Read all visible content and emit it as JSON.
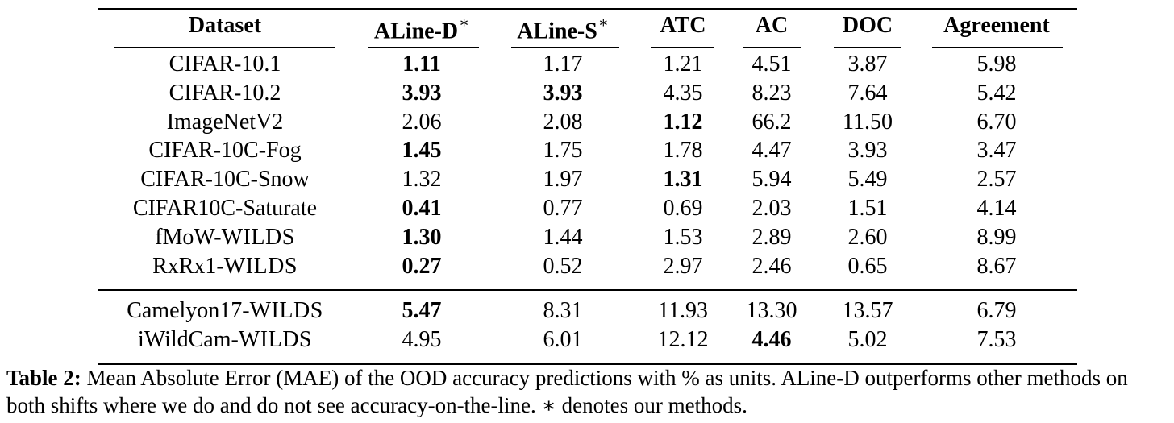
{
  "table": {
    "columns": [
      {
        "label": "Dataset",
        "star": ""
      },
      {
        "label": "ALine-D",
        "star": "∗"
      },
      {
        "label": "ALine-S",
        "star": "∗"
      },
      {
        "label": "ATC",
        "star": ""
      },
      {
        "label": "AC",
        "star": ""
      },
      {
        "label": "DOC",
        "star": ""
      },
      {
        "label": "Agreement",
        "star": ""
      }
    ],
    "group1": [
      {
        "dataset": "CIFAR-10.1",
        "suffix": "",
        "values": [
          "1.11",
          "1.17",
          "1.21",
          "4.51",
          "3.87",
          "5.98"
        ],
        "bold": [
          true,
          false,
          false,
          false,
          false,
          false
        ]
      },
      {
        "dataset": "CIFAR-10.2",
        "suffix": "",
        "values": [
          "3.93",
          "3.93",
          "4.35",
          "8.23",
          "7.64",
          "5.42"
        ],
        "bold": [
          true,
          true,
          false,
          false,
          false,
          false
        ]
      },
      {
        "dataset": "ImageNetV2",
        "suffix": "",
        "values": [
          "2.06",
          "2.08",
          "1.12",
          "66.2",
          "11.50",
          "6.70"
        ],
        "bold": [
          false,
          false,
          true,
          false,
          false,
          false
        ]
      },
      {
        "dataset": "CIFAR-10C-Fog",
        "suffix": "",
        "values": [
          "1.45",
          "1.75",
          "1.78",
          "4.47",
          "3.93",
          "3.47"
        ],
        "bold": [
          true,
          false,
          false,
          false,
          false,
          false
        ]
      },
      {
        "dataset": "CIFAR-10C-Snow",
        "suffix": "",
        "values": [
          "1.32",
          "1.97",
          "1.31",
          "5.94",
          "5.49",
          "2.57"
        ],
        "bold": [
          false,
          false,
          true,
          false,
          false,
          false
        ]
      },
      {
        "dataset": "CIFAR10C-Saturate",
        "suffix": "",
        "values": [
          "0.41",
          "0.77",
          "0.69",
          "2.03",
          "1.51",
          "4.14"
        ],
        "bold": [
          true,
          false,
          false,
          false,
          false,
          false
        ]
      },
      {
        "dataset": "fMoW-",
        "suffix": "WILDS",
        "values": [
          "1.30",
          "1.44",
          "1.53",
          "2.89",
          "2.60",
          "8.99"
        ],
        "bold": [
          true,
          false,
          false,
          false,
          false,
          false
        ]
      },
      {
        "dataset": "RxRx1-",
        "suffix": "WILDS",
        "values": [
          "0.27",
          "0.52",
          "2.97",
          "2.46",
          "0.65",
          "8.67"
        ],
        "bold": [
          true,
          false,
          false,
          false,
          false,
          false
        ]
      }
    ],
    "group2": [
      {
        "dataset": "Camelyon17-",
        "suffix": "WILDS",
        "values": [
          "5.47",
          "8.31",
          "11.93",
          "13.30",
          "13.57",
          "6.79"
        ],
        "bold": [
          true,
          false,
          false,
          false,
          false,
          false
        ]
      },
      {
        "dataset": "iWildCam-",
        "suffix": "WILDS",
        "values": [
          "4.95",
          "6.01",
          "12.12",
          "4.46",
          "5.02",
          "7.53"
        ],
        "bold": [
          false,
          false,
          false,
          true,
          false,
          false
        ]
      }
    ]
  },
  "caption": {
    "label": "Table 2:",
    "text": " Mean Absolute Error (MAE) of the OOD accuracy predictions with % as units. ALine-D outperforms other methods on both shifts where we do and do not see accuracy-on-the-line. ∗ denotes our methods."
  }
}
